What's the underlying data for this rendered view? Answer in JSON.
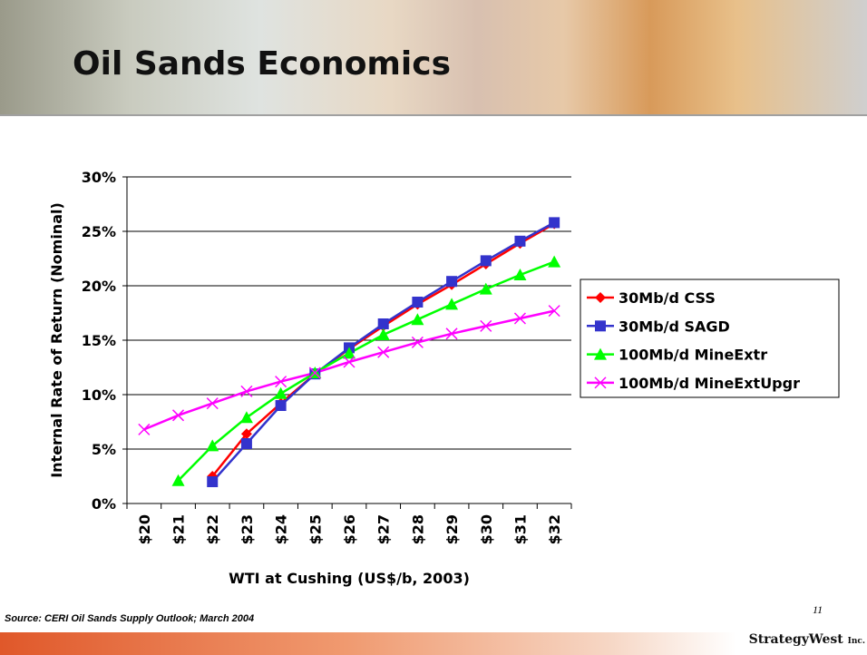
{
  "header": {
    "title": "Oil Sands Economics"
  },
  "chart_data": {
    "type": "line",
    "y_axis_label": "Internal Rate of Return (Nominal)",
    "x_axis_label": "WTI at Cushing (US$/b, 2003)",
    "categories": [
      "$20",
      "$21",
      "$22",
      "$23",
      "$24",
      "$25",
      "$26",
      "$27",
      "$28",
      "$29",
      "$30",
      "$31",
      "$32"
    ],
    "ylim": [
      0,
      30
    ],
    "yticks": [
      {
        "value": 0,
        "label": "0%"
      },
      {
        "value": 5,
        "label": "5%"
      },
      {
        "value": 10,
        "label": "10%"
      },
      {
        "value": 15,
        "label": "15%"
      },
      {
        "value": 20,
        "label": "20%"
      },
      {
        "value": 25,
        "label": "25%"
      },
      {
        "value": 30,
        "label": "30%"
      }
    ],
    "grid": true,
    "legend": "right",
    "series": [
      {
        "name": "30Mb/d CSS",
        "color": "#ff0000",
        "marker": "diamond",
        "values": [
          null,
          null,
          2.5,
          6.4,
          9.2,
          11.9,
          14.2,
          16.3,
          18.3,
          20.1,
          22.0,
          23.9,
          25.7
        ]
      },
      {
        "name": "30Mb/d SAGD",
        "color": "#3333cc",
        "marker": "square",
        "values": [
          null,
          null,
          2.0,
          5.5,
          9.0,
          11.9,
          14.3,
          16.5,
          18.5,
          20.4,
          22.3,
          24.1,
          25.8
        ]
      },
      {
        "name": "100Mb/d MineExtr",
        "color": "#00ff00",
        "marker": "triangle",
        "values": [
          null,
          2.1,
          5.3,
          7.9,
          10.1,
          12.0,
          13.8,
          15.5,
          16.9,
          18.3,
          19.7,
          21.0,
          22.2
        ]
      },
      {
        "name": "100Mb/d MineExtUpgr",
        "color": "#ff00ff",
        "marker": "x",
        "values": [
          6.8,
          8.1,
          9.2,
          10.3,
          11.2,
          12.0,
          13.0,
          13.9,
          14.8,
          15.6,
          16.3,
          17.0,
          17.7
        ]
      }
    ]
  },
  "footer": {
    "source": "Source: CERI Oil Sands Supply Outlook; March 2004",
    "page": "11",
    "logo": "StrategyWest",
    "logo_sub": "Inc."
  }
}
